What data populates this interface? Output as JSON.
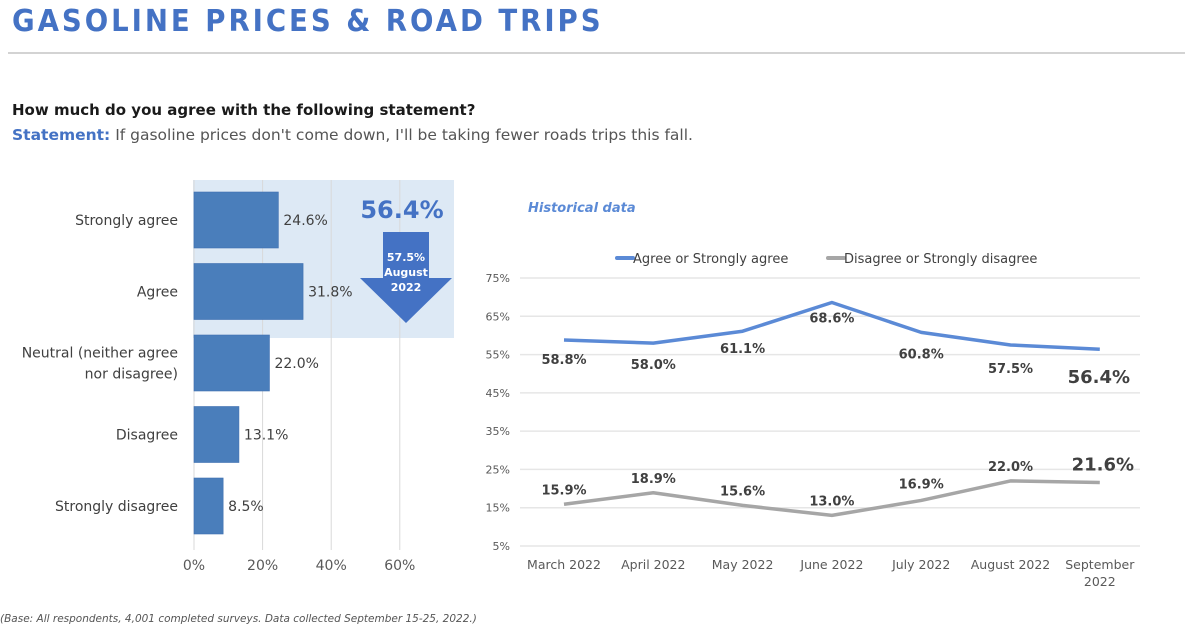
{
  "header": {
    "title": "GASOLINE PRICES & ROAD TRIPS",
    "question": "How much do you agree with the following statement?",
    "statement_label": "Statement:",
    "statement_text": " If gasoline prices don't come down, I'll be taking fewer roads trips this fall."
  },
  "footnote": "(Base: All respondents, 4,001 completed surveys. Data collected September 15-25, 2022.)",
  "colors": {
    "accent": "#4472C4",
    "bar": "#4a7ebb",
    "highlight_bg": "#dde9f5",
    "agree_line": "#5b8ad6",
    "disagree_line": "#a6a6a6",
    "grid": "#e6e6e6"
  },
  "callout": {
    "total": "56.4%",
    "arrow_lines": [
      "57.5%",
      "August",
      "2022"
    ]
  },
  "chart_data": [
    {
      "type": "bar",
      "orientation": "horizontal",
      "title": "",
      "categories": [
        "Strongly agree",
        "Agree",
        "Neutral (neither agree nor disagree)",
        "Disagree",
        "Strongly disagree"
      ],
      "category_lines": [
        [
          "Strongly agree"
        ],
        [
          "Agree"
        ],
        [
          "Neutral (neither agree",
          "nor disagree)"
        ],
        [
          "Disagree"
        ],
        [
          "Strongly disagree"
        ]
      ],
      "values": [
        24.6,
        31.8,
        22.0,
        13.1,
        8.5
      ],
      "data_labels": [
        "24.6%",
        "31.8%",
        "22.0%",
        "13.1%",
        "8.5%"
      ],
      "xlim": [
        0,
        76
      ],
      "xticks": [
        0,
        20,
        40,
        60
      ],
      "xtick_labels": [
        "0%",
        "20%",
        "40%",
        "60%"
      ],
      "grid": true,
      "highlighted_categories": [
        "Strongly agree",
        "Agree"
      ],
      "xlabel": "",
      "ylabel": ""
    },
    {
      "type": "line",
      "title": "Historical data",
      "categories": [
        "March 2022",
        "April 2022",
        "May 2022",
        "June 2022",
        "July 2022",
        "August 2022",
        "September 2022"
      ],
      "category_lines": [
        [
          "March 2022"
        ],
        [
          "April 2022"
        ],
        [
          "May 2022"
        ],
        [
          "June 2022"
        ],
        [
          "July 2022"
        ],
        [
          "August 2022"
        ],
        [
          "September",
          "2022"
        ]
      ],
      "series": [
        {
          "name": "Agree or Strongly agree",
          "values": [
            58.8,
            58.0,
            61.1,
            68.6,
            60.8,
            57.5,
            56.4
          ],
          "labels": [
            "58.8%",
            "58.0%",
            "61.1%",
            "68.6%",
            "60.8%",
            "57.5%",
            "56.4%"
          ]
        },
        {
          "name": "Disagree or Strongly disagree",
          "values": [
            15.9,
            18.9,
            15.6,
            13.0,
            16.9,
            22.0,
            21.6
          ],
          "labels": [
            "15.9%",
            "18.9%",
            "15.6%",
            "13.0%",
            "16.9%",
            "22.0%",
            "21.6%"
          ]
        }
      ],
      "ylim": [
        5,
        75
      ],
      "yticks": [
        5,
        15,
        25,
        35,
        45,
        55,
        65,
        75
      ],
      "ytick_labels": [
        "5%",
        "15%",
        "25%",
        "35%",
        "45%",
        "55%",
        "65%",
        "75%"
      ],
      "grid": true,
      "legend": "top",
      "xlabel": "",
      "ylabel": ""
    }
  ]
}
